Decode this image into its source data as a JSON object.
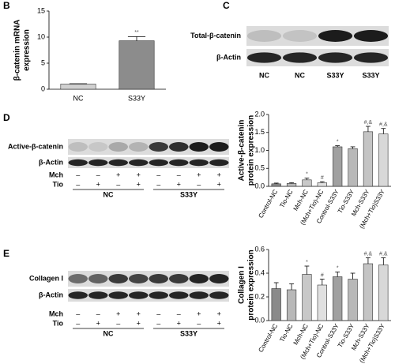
{
  "panel_letters": [
    "B",
    "C",
    "D",
    "E"
  ],
  "blots": [
    {
      "rows": [
        "Total-β-catenin",
        "β-Actin"
      ],
      "lanes": [
        "NC",
        "NC",
        "S33Y",
        "S33Y"
      ]
    },
    {
      "rows": [
        "Active-β-catenin",
        "β-Actin"
      ],
      "treatments": [
        {
          "name": "Mch",
          "signs": [
            "–",
            "–",
            "+",
            "+",
            "–",
            "–",
            "+",
            "+"
          ]
        },
        {
          "name": "Tio",
          "signs": [
            "–",
            "+",
            "–",
            "+",
            "–",
            "+",
            "–",
            "+"
          ]
        }
      ],
      "groups": [
        "NC",
        "S33Y"
      ]
    },
    {
      "rows": [
        "Collagen I",
        "β-Actin"
      ],
      "treatments": [
        {
          "name": "Mch",
          "signs": [
            "–",
            "–",
            "+",
            "+",
            "–",
            "–",
            "+",
            "+"
          ]
        },
        {
          "name": "Tio",
          "signs": [
            "–",
            "+",
            "–",
            "+",
            "–",
            "+",
            "–",
            "+"
          ]
        }
      ],
      "groups": [
        "NC",
        "S33Y"
      ]
    }
  ],
  "chart_data": [
    {
      "type": "bar",
      "ylabel": [
        "β-catenin mRNA",
        "expression"
      ],
      "categories": [
        "NC",
        "S33Y"
      ],
      "values": [
        1,
        9.3
      ],
      "errors": [
        0.05,
        0.8
      ],
      "annotations": [
        null,
        "**"
      ],
      "colors": [
        "#d0d0d0",
        "#8c8c8c"
      ],
      "ylim": [
        0,
        15
      ],
      "yticks": [
        0,
        5,
        10,
        15
      ]
    },
    {
      "type": "bar",
      "ylabel": [
        "Active-β-catenin",
        "protein expression"
      ],
      "categories": [
        "Control-NC",
        "Tio-NC",
        "Mch-NC",
        "(Mch+Tio)-NC",
        "Control-S33Y",
        "Tio-S33Y",
        "Mch-S33Y",
        "(Mch+Tio)S33Y"
      ],
      "values": [
        0.07,
        0.08,
        0.18,
        0.1,
        1.1,
        1.05,
        1.52,
        1.46
      ],
      "errors": [
        0.02,
        0.02,
        0.05,
        0.03,
        0.03,
        0.05,
        0.15,
        0.15
      ],
      "annotations": [
        null,
        null,
        "*",
        "#",
        "*",
        null,
        "#,&",
        "#,&"
      ],
      "colors": [
        "#8a8a8a",
        "#b8b8b8",
        "#c8c8c8",
        "#e0e0e0",
        "#a0a0a0",
        "#b8b8b8",
        "#c4c4c4",
        "#d8d8d8"
      ],
      "ylim": [
        0,
        2
      ],
      "yticks": [
        {
          "value": 0,
          "label": "0.0"
        },
        0.5,
        {
          "value": 1,
          "label": "1.0"
        },
        1.5,
        {
          "value": 2,
          "label": "2.0"
        }
      ]
    },
    {
      "type": "bar",
      "ylabel": [
        "Collagen I",
        "protein expression"
      ],
      "categories": [
        "Control-NC",
        "Tio-NC",
        "Mch-NC",
        "(Mch+Tio)-NC",
        "Control-S33Y",
        "Tio-S33Y",
        "Mch-S33Y",
        "(Mch+Tio)S33Y"
      ],
      "values": [
        0.27,
        0.26,
        0.39,
        0.3,
        0.37,
        0.35,
        0.48,
        0.47
      ],
      "errors": [
        0.05,
        0.05,
        0.07,
        0.05,
        0.04,
        0.05,
        0.05,
        0.06
      ],
      "annotations": [
        null,
        null,
        "*",
        "#",
        "*",
        null,
        "#,&",
        "#,&"
      ],
      "colors": [
        "#8a8a8a",
        "#b8b8b8",
        "#c8c8c8",
        "#e0e0e0",
        "#a0a0a0",
        "#b8b8b8",
        "#c4c4c4",
        "#d8d8d8"
      ],
      "ylim": [
        0,
        0.6
      ],
      "yticks": [
        {
          "value": 0,
          "label": "0.0"
        },
        0.2,
        0.4,
        0.6
      ]
    }
  ]
}
